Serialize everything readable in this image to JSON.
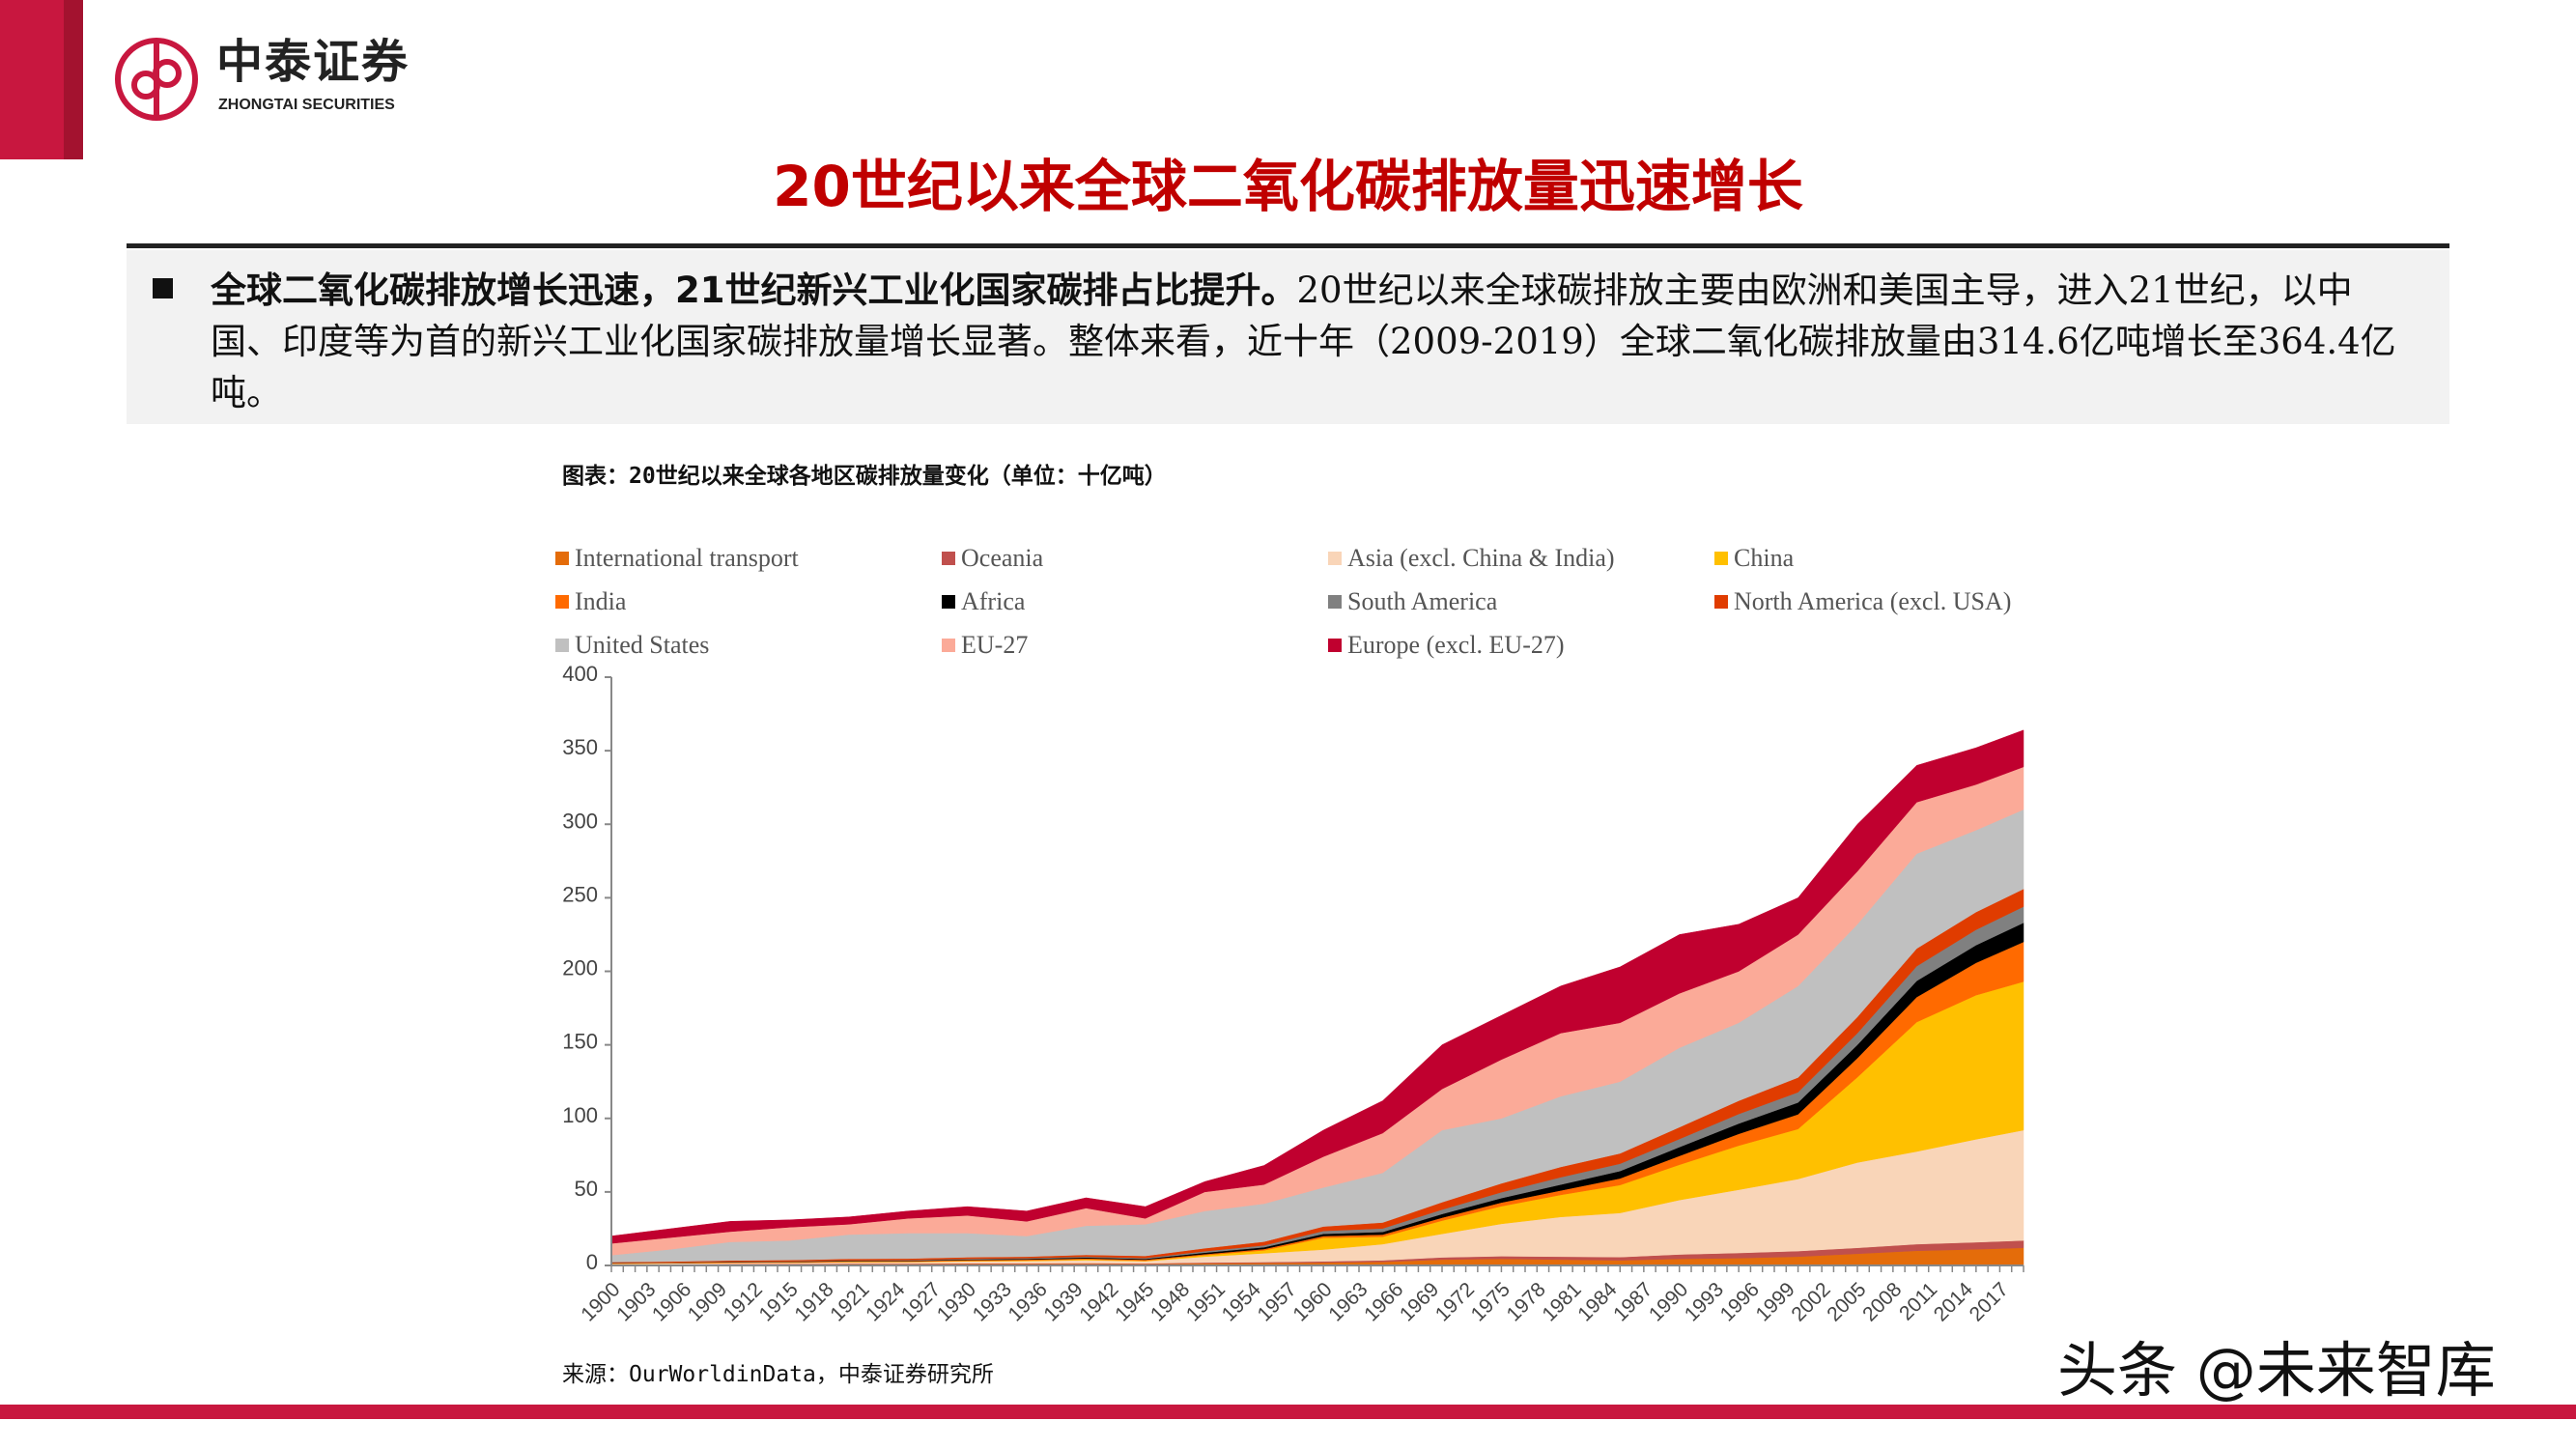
{
  "header": {
    "logo_cn": "中泰证券",
    "logo_en": "ZHONGTAI SECURITIES",
    "title": "20世纪以来全球二氧化碳排放量迅速增长"
  },
  "summary": {
    "bold": "全球二氧化碳排放增长迅速，21世纪新兴工业化国家碳排占比提升。",
    "text": "20世纪以来全球碳排放主要由欧洲和美国主导，进入21世纪，以中国、印度等为首的新兴工业化国家碳排放量增长显著。整体来看，近十年（2009-2019）全球二氧化碳排放量由314.6亿吨增长至364.4亿吨。"
  },
  "figure_title": "图表：20世纪以来全球各地区碳排放量变化（单位：十亿吨）",
  "source": "来源：OurWorldinData，中泰证券研究所",
  "watermark": "头条 @未来智库",
  "colors": {
    "brand_red": "#C8173F",
    "title_red": "#C00000"
  },
  "chart_data": {
    "type": "area",
    "stacked": true,
    "title": "",
    "xlabel": "",
    "ylabel": "",
    "ylim": [
      0,
      400
    ],
    "yticks": [
      0,
      50,
      100,
      150,
      200,
      250,
      300,
      350,
      400
    ],
    "xlim": [
      1900,
      2019
    ],
    "xtick_labels": [
      "1900",
      "1903",
      "1906",
      "1909",
      "1912",
      "1915",
      "1918",
      "1921",
      "1924",
      "1927",
      "1930",
      "1933",
      "1936",
      "1939",
      "1942",
      "1945",
      "1948",
      "1951",
      "1954",
      "1957",
      "1960",
      "1963",
      "1966",
      "1969",
      "1972",
      "1975",
      "1978",
      "1981",
      "1984",
      "1987",
      "1990",
      "1993",
      "1996",
      "1999",
      "2002",
      "2005",
      "2008",
      "2011",
      "2014",
      "2017"
    ],
    "grid": false,
    "legend_position": "top",
    "x": [
      1900,
      1905,
      1910,
      1915,
      1920,
      1925,
      1930,
      1935,
      1940,
      1945,
      1950,
      1955,
      1960,
      1965,
      1970,
      1975,
      1980,
      1985,
      1990,
      1995,
      2000,
      2005,
      2010,
      2015,
      2019
    ],
    "series": [
      {
        "name": "International transport",
        "color": "#E46C0A",
        "values": [
          0.5,
          0.6,
          0.7,
          0.8,
          1,
          1,
          1.1,
          1.1,
          1.2,
          1,
          1.5,
          1.7,
          2,
          2.5,
          4,
          4.5,
          4,
          3.5,
          4.5,
          5,
          6,
          8,
          10,
          11,
          12
        ]
      },
      {
        "name": "Oceania",
        "color": "#C0504D",
        "values": [
          0.2,
          0.2,
          0.3,
          0.3,
          0.3,
          0.3,
          0.4,
          0.4,
          0.4,
          0.4,
          0.5,
          0.6,
          0.8,
          1,
          1.5,
          1.8,
          2,
          2.2,
          3,
          3.5,
          3.8,
          4,
          4.5,
          4.8,
          5
        ]
      },
      {
        "name": "Asia (excl. China & India)",
        "color": "#F9D5B8",
        "values": [
          0.5,
          0.6,
          0.7,
          0.8,
          0.9,
          1,
          1.3,
          1.5,
          2,
          1.5,
          4,
          6,
          8,
          11,
          16,
          22,
          27,
          30,
          37,
          43,
          49,
          58,
          63,
          70,
          75
        ]
      },
      {
        "name": "China",
        "color": "#FFC000",
        "values": [
          0.1,
          0.1,
          0.1,
          0.1,
          0.2,
          0.2,
          0.3,
          0.4,
          0.5,
          0.3,
          1,
          2,
          8,
          5,
          9,
          12,
          15,
          19,
          24,
          30,
          34,
          58,
          88,
          98,
          101
        ]
      },
      {
        "name": "India",
        "color": "#FF6A00",
        "values": [
          0.3,
          0.3,
          0.4,
          0.4,
          0.5,
          0.5,
          0.6,
          0.6,
          0.7,
          0.7,
          0.7,
          0.9,
          1.2,
          1.5,
          2,
          2.5,
          3,
          4.5,
          6,
          8,
          10,
          13,
          17,
          22,
          27
        ]
      },
      {
        "name": "Africa",
        "color": "#000000",
        "values": [
          0.1,
          0.1,
          0.2,
          0.2,
          0.3,
          0.3,
          0.4,
          0.5,
          0.6,
          0.6,
          1,
          1.2,
          1.5,
          1.8,
          2.5,
          3,
          4,
          5,
          6,
          7,
          8,
          9,
          11,
          12,
          13
        ]
      },
      {
        "name": "South America",
        "color": "#808080",
        "values": [
          0.1,
          0.2,
          0.2,
          0.3,
          0.3,
          0.4,
          0.5,
          0.5,
          0.6,
          0.6,
          1,
          1.3,
          2,
          2.4,
          3,
          4,
          5,
          5,
          5.5,
          6.5,
          7,
          8,
          10,
          10.5,
          11
        ]
      },
      {
        "name": "North America (excl. USA)",
        "color": "#E03C00",
        "values": [
          0.5,
          0.6,
          0.8,
          0.8,
          1,
          1,
          1,
          1,
          1.2,
          1.4,
          2,
          2.5,
          3,
          4,
          5,
          6,
          7,
          7,
          8,
          9,
          10,
          11,
          12,
          12,
          12
        ]
      },
      {
        "name": "United States",
        "color": "#C0C0C0",
        "values": [
          4.7,
          8.3,
          12.6,
          13.3,
          16.5,
          17.3,
          16.4,
          14,
          19.8,
          21.5,
          25.3,
          25.8,
          26.5,
          33.8,
          49,
          44.2,
          48,
          48.8,
          54,
          53,
          62.2,
          63,
          64.5,
          55.7,
          54
        ]
      },
      {
        "name": "EU-27",
        "color": "#FBAA98",
        "values": [
          8,
          8,
          7,
          9,
          7,
          10,
          12,
          10,
          12,
          4,
          13,
          13,
          21,
          27,
          28,
          40,
          43,
          40,
          37,
          35,
          35,
          36,
          35,
          31,
          29
        ]
      },
      {
        "name": "Europe (excl. EU-27)",
        "color": "#C0002F",
        "values": [
          5,
          6,
          7,
          5,
          5,
          5,
          6,
          7,
          7,
          8,
          7,
          13,
          18,
          22,
          30,
          30,
          32,
          38,
          40,
          32,
          25,
          32,
          25,
          25,
          25
        ]
      }
    ]
  }
}
